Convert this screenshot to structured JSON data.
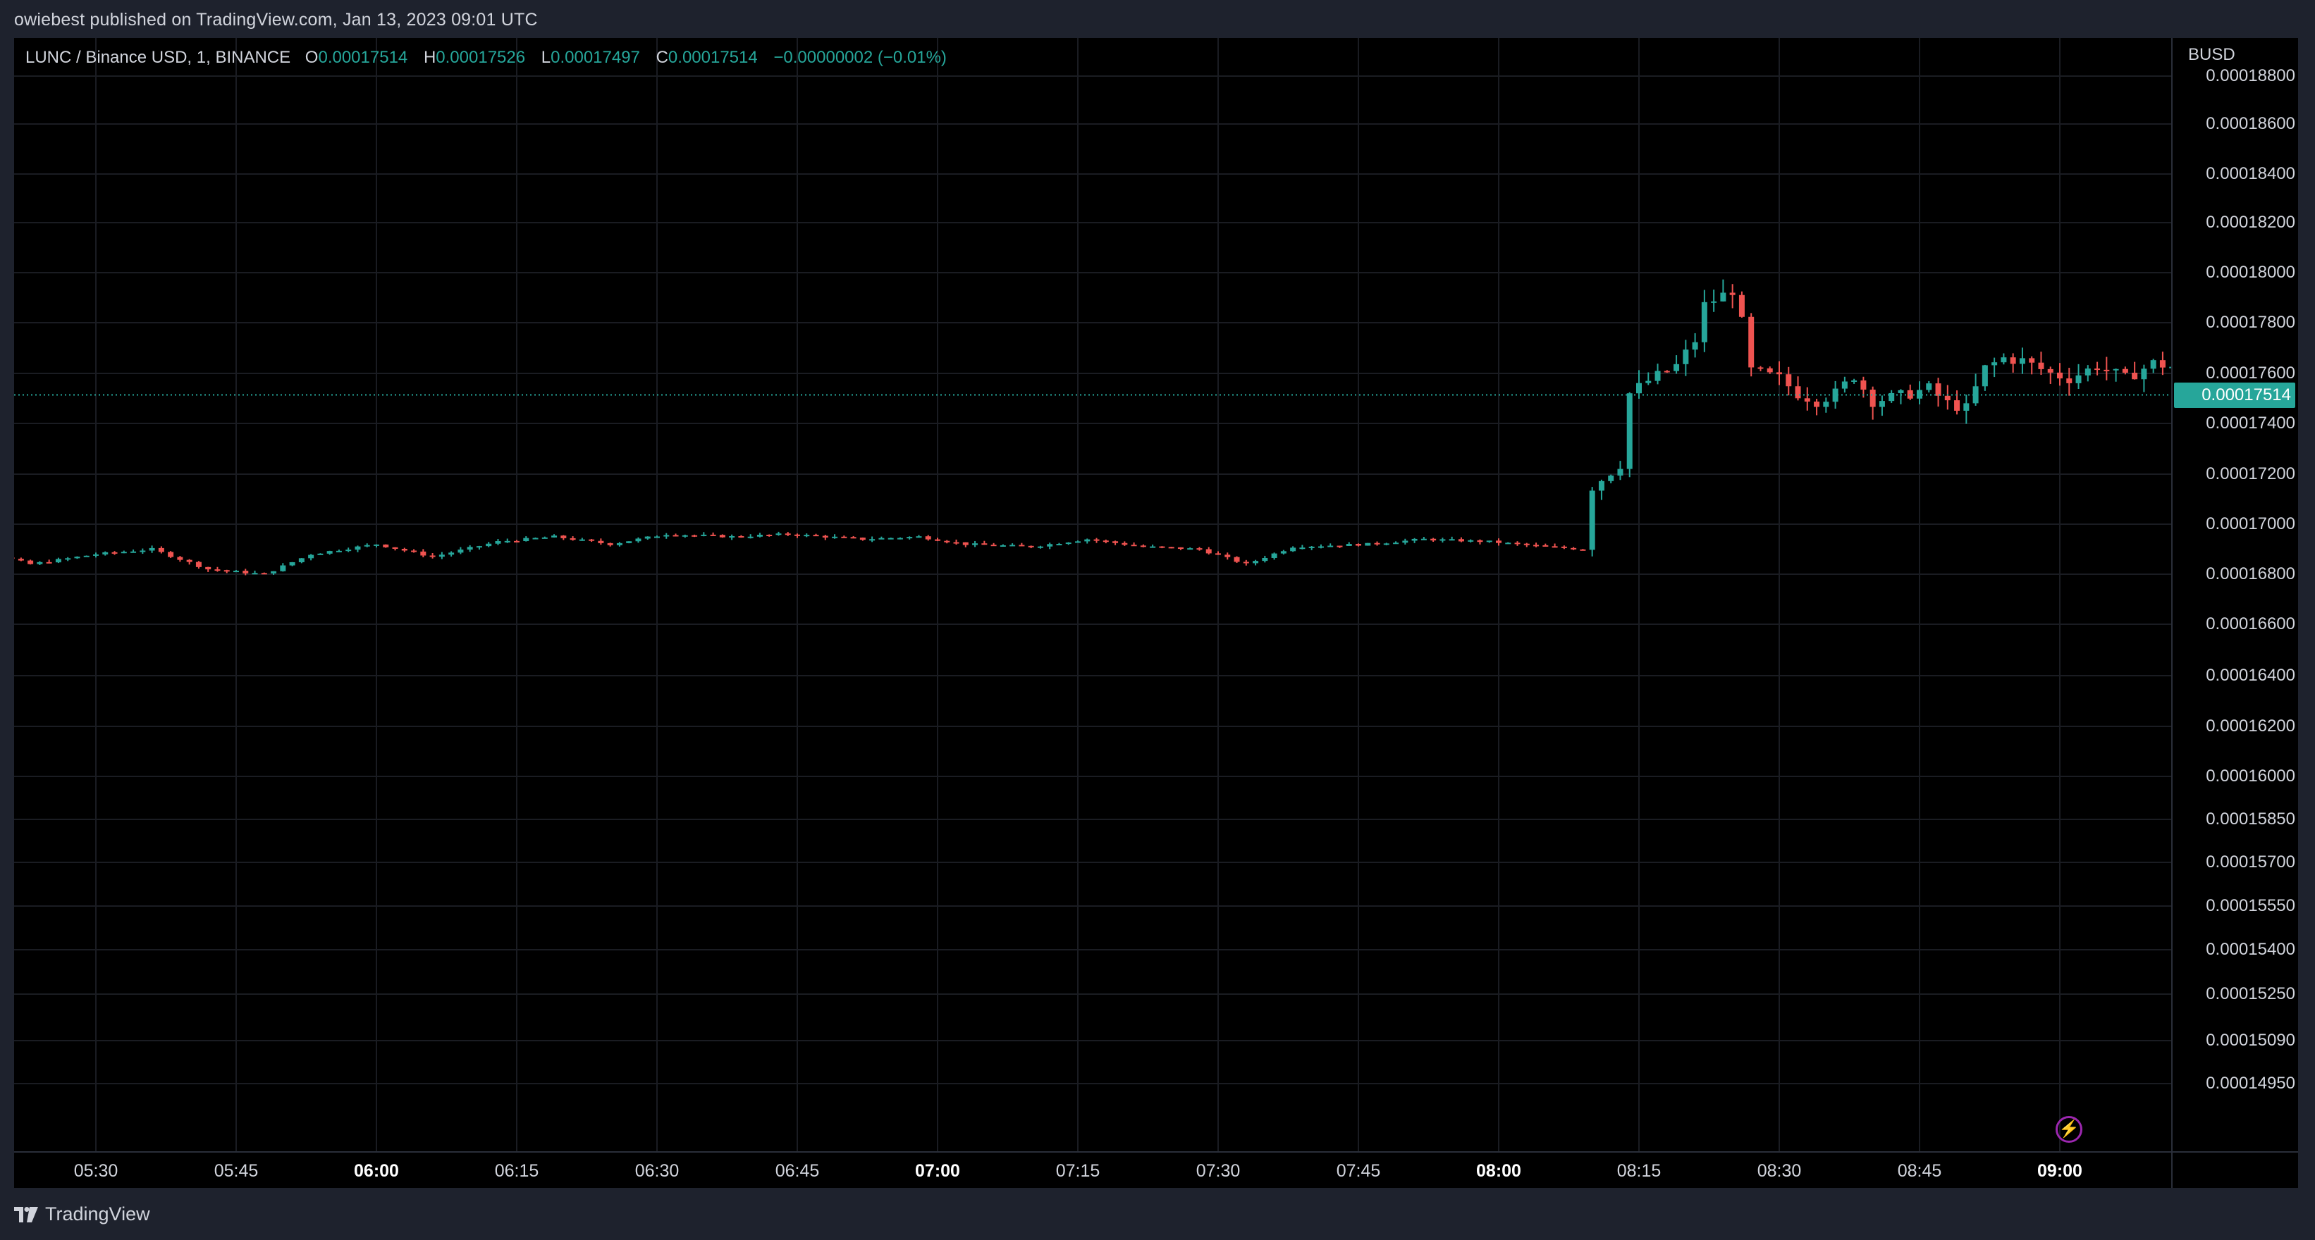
{
  "header": {
    "credit": "owiebest published on TradingView.com, Jan 13, 2023 09:01 UTC"
  },
  "legend": {
    "symbol": "LUNC / Binance USD, 1, BINANCE",
    "o_label": "O",
    "o_value": "0.00017514",
    "h_label": "H",
    "h_value": "0.00017526",
    "l_label": "L",
    "l_value": "0.00017497",
    "c_label": "C",
    "c_value": "0.00017514",
    "change": "−0.00000002 (−0.01%)"
  },
  "price_axis": {
    "currency": "BUSD",
    "last_price_label": "0.00017514"
  },
  "footer": {
    "brand": "TradingView"
  },
  "colors": {
    "up": "#26a69a",
    "down": "#ef5350",
    "background": "#000000",
    "frame": "#1e222d",
    "text": "#d1d4dc",
    "bolt": "#9c27b0"
  },
  "icons": {
    "logo": "tradingview-logo-icon",
    "bolt": "lightning-bolt-icon"
  },
  "chart_data": {
    "type": "candlestick",
    "symbol": "LUNC / Binance USD",
    "interval": "1",
    "exchange": "BINANCE",
    "y_ticks": [
      "0.00018800",
      "0.00018600",
      "0.00018400",
      "0.00018200",
      "0.00018000",
      "0.00017800",
      "0.00017600",
      "0.00017400",
      "0.00017200",
      "0.00017000",
      "0.00016800",
      "0.00016600",
      "0.00016400",
      "0.00016200",
      "0.00016000",
      "0.00015850",
      "0.00015700",
      "0.00015550",
      "0.00015400",
      "0.00015250",
      "0.00015090",
      "0.00014950"
    ],
    "x_ticks": [
      {
        "label": "05:30",
        "bold": false
      },
      {
        "label": "05:45",
        "bold": false
      },
      {
        "label": "06:00",
        "bold": true
      },
      {
        "label": "06:15",
        "bold": false
      },
      {
        "label": "06:30",
        "bold": false
      },
      {
        "label": "06:45",
        "bold": false
      },
      {
        "label": "07:00",
        "bold": true
      },
      {
        "label": "07:15",
        "bold": false
      },
      {
        "label": "07:30",
        "bold": false
      },
      {
        "label": "07:45",
        "bold": false
      },
      {
        "label": "08:00",
        "bold": true
      },
      {
        "label": "08:15",
        "bold": false
      },
      {
        "label": "08:30",
        "bold": false
      },
      {
        "label": "08:45",
        "bold": false
      },
      {
        "label": "09:00",
        "bold": true
      }
    ],
    "last_price": 0.00017514,
    "x_start_minutes": 311,
    "anchors": [
      [
        311,
        0.0001695
      ],
      [
        318,
        0.0001689
      ],
      [
        323,
        0.0001684
      ],
      [
        330,
        0.0001688
      ],
      [
        336,
        0.000169
      ],
      [
        342,
        0.0001682
      ],
      [
        348,
        0.000168
      ],
      [
        353,
        0.0001688
      ],
      [
        360,
        0.0001692
      ],
      [
        366,
        0.0001687
      ],
      [
        373,
        0.0001693
      ],
      [
        379,
        0.0001695
      ],
      [
        385,
        0.0001692
      ],
      [
        391,
        0.0001696
      ],
      [
        398,
        0.0001695
      ],
      [
        404,
        0.0001696
      ],
      [
        412,
        0.0001694
      ],
      [
        418,
        0.0001695
      ],
      [
        423,
        0.0001692
      ],
      [
        430,
        0.0001691
      ],
      [
        436,
        0.0001694
      ],
      [
        442,
        0.0001691
      ],
      [
        448,
        0.000169
      ],
      [
        453,
        0.0001684
      ],
      [
        458,
        0.0001691
      ],
      [
        466,
        0.0001692
      ],
      [
        472,
        0.0001694
      ],
      [
        479,
        0.0001693
      ],
      [
        485,
        0.0001691
      ],
      [
        489,
        0.000169
      ],
      [
        490,
        0.0001715
      ],
      [
        493,
        0.0001724
      ],
      [
        494,
        0.0001752
      ],
      [
        496,
        0.0001757
      ],
      [
        499,
        0.0001763
      ],
      [
        501,
        0.0001773
      ],
      [
        502,
        0.0001787
      ],
      [
        505,
        0.0001793
      ],
      [
        506,
        0.000178
      ],
      [
        507,
        0.0001761
      ],
      [
        510,
        0.0001758
      ],
      [
        512,
        0.0001752
      ],
      [
        514,
        0.0001749
      ],
      [
        516,
        0.0001752
      ],
      [
        518,
        0.0001759
      ],
      [
        520,
        0.0001749
      ],
      [
        523,
        0.0001751
      ],
      [
        526,
        0.0001754
      ],
      [
        528,
        0.0001748
      ],
      [
        530,
        0.0001746
      ],
      [
        532,
        0.0001762
      ],
      [
        534,
        0.0001766
      ],
      [
        536,
        0.0001765
      ],
      [
        539,
        0.000176
      ],
      [
        541,
        0.0001758
      ],
      [
        544,
        0.0001763
      ],
      [
        547,
        0.0001758
      ],
      [
        550,
        0.0001764
      ],
      [
        553,
        0.0001762
      ],
      [
        556,
        0.0001762
      ],
      [
        558,
        0.0001758
      ],
      [
        559,
        0.0001751
      ]
    ]
  }
}
